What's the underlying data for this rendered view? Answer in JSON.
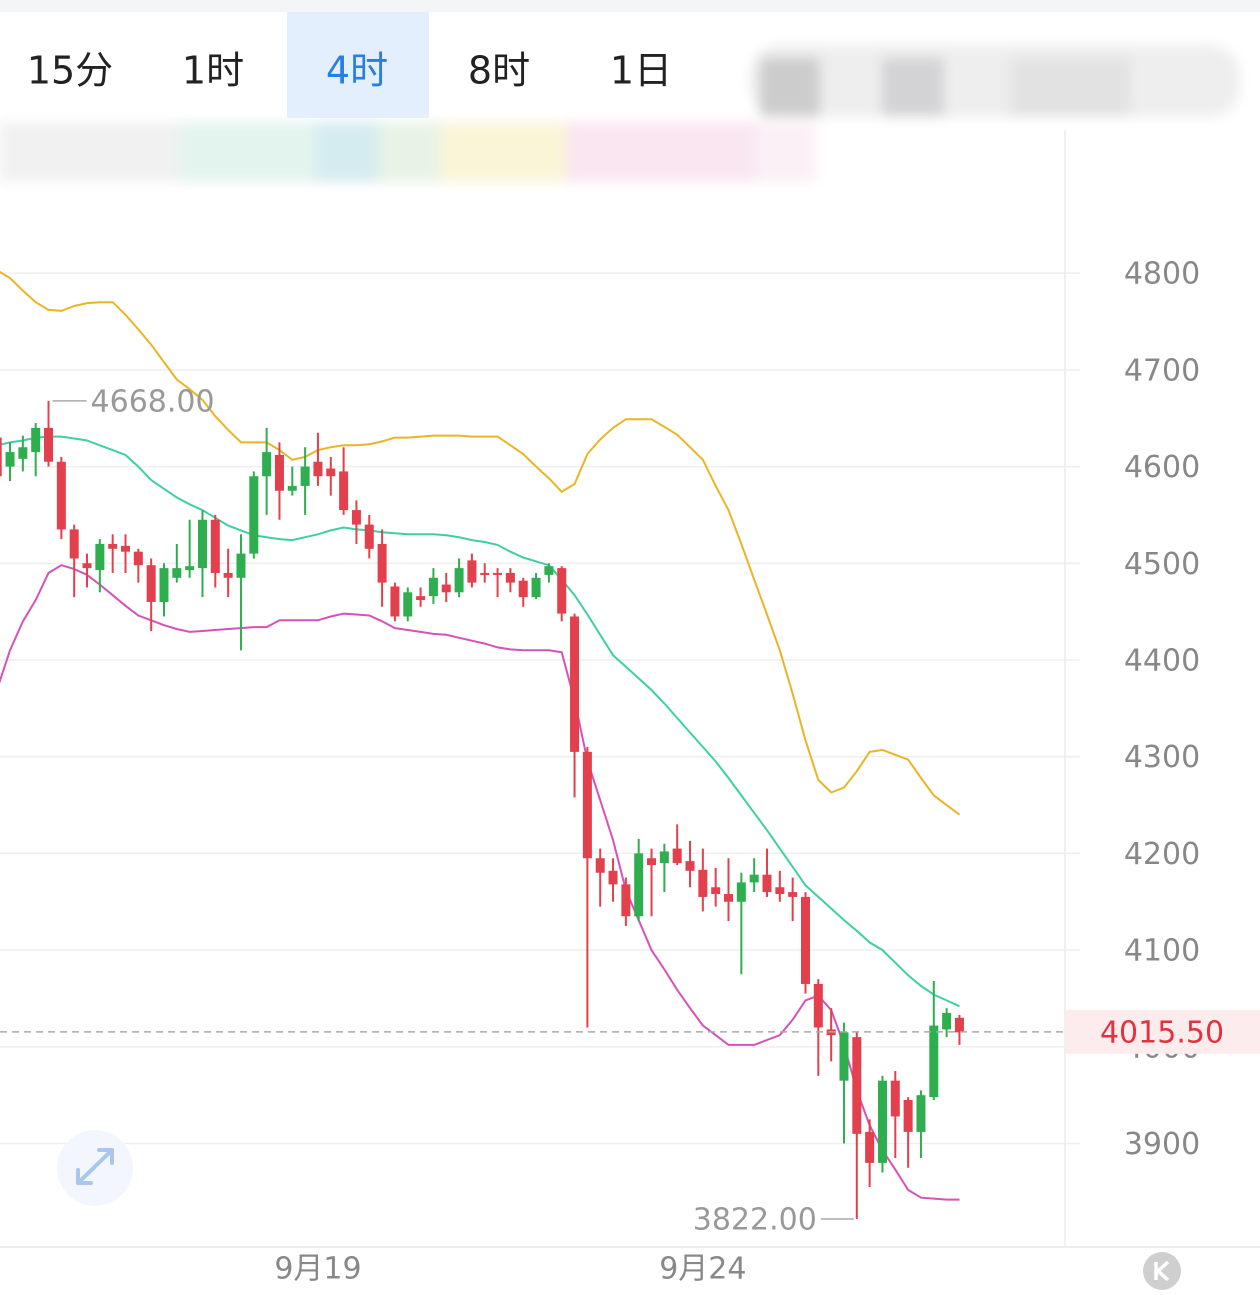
{
  "tabs": {
    "items": [
      "15分",
      "1时",
      "4时",
      "8时",
      "1日"
    ],
    "selected": "4时"
  },
  "chart_data": {
    "type": "candlestick",
    "categories": [
      null,
      null,
      null,
      null,
      null,
      null,
      null,
      null,
      null,
      null,
      null,
      null,
      null,
      null,
      null,
      null,
      null,
      null,
      null,
      null,
      null,
      null,
      null,
      null,
      null,
      "9月19",
      null,
      null,
      null,
      null,
      null,
      null,
      null,
      null,
      null,
      null,
      null,
      null,
      null,
      null,
      null,
      null,
      null,
      null,
      null,
      null,
      null,
      null,
      null,
      null,
      null,
      null,
      null,
      null,
      null,
      "9月24",
      null,
      null,
      null,
      null,
      null,
      null,
      null,
      null,
      null,
      null,
      null,
      null,
      null,
      null,
      null,
      null,
      null,
      null,
      null,
      null
    ],
    "open": [
      4630,
      4600,
      4608,
      4615,
      4640,
      4605,
      4535,
      4500,
      4493,
      4520,
      4518,
      4512,
      4498,
      4460,
      4485,
      4493,
      4495,
      4545,
      4490,
      4485,
      4510,
      4590,
      4612,
      4575,
      4580,
      4605,
      4598,
      4595,
      4555,
      4540,
      4520,
      4476,
      4445,
      4466,
      4466,
      4478,
      4470,
      4503,
      4490,
      4490,
      4490,
      4482,
      4465,
      4488,
      4495,
      4445,
      4305,
      4195,
      4182,
      4168,
      4135,
      4195,
      4190,
      4205,
      4192,
      4183,
      4165,
      4158,
      4150,
      4170,
      4178,
      4165,
      4160,
      4155,
      4065,
      4018,
      3965,
      4010,
      3912,
      3880,
      3965,
      3945,
      3912,
      3948,
      4018,
      4030
    ],
    "high": [
      4640,
      4625,
      4632,
      4645,
      4668,
      4610,
      4540,
      4510,
      4525,
      4530,
      4530,
      4515,
      4505,
      4500,
      4520,
      4545,
      4555,
      4550,
      4515,
      4530,
      4595,
      4640,
      4625,
      4600,
      4620,
      4635,
      4610,
      4620,
      4565,
      4550,
      4535,
      4480,
      4475,
      4475,
      4495,
      4490,
      4505,
      4510,
      4500,
      4495,
      4495,
      4485,
      4490,
      4500,
      4497,
      4448,
      4310,
      4205,
      4195,
      4175,
      4215,
      4205,
      4210,
      4230,
      4213,
      4205,
      4185,
      4195,
      4180,
      4195,
      4205,
      4182,
      4175,
      4160,
      4070,
      4040,
      4025,
      4015,
      3925,
      3970,
      3975,
      3948,
      3955,
      4068,
      4040,
      4033
    ],
    "low": [
      4580,
      4585,
      4595,
      4590,
      4600,
      4525,
      4465,
      4475,
      4470,
      4490,
      4490,
      4480,
      4430,
      4445,
      4480,
      4485,
      4465,
      4475,
      4465,
      4410,
      4505,
      4550,
      4545,
      4570,
      4550,
      4580,
      4570,
      4550,
      4520,
      4505,
      4455,
      4440,
      4440,
      4455,
      4458,
      4460,
      4465,
      4475,
      4480,
      4465,
      4470,
      4455,
      4463,
      4480,
      4440,
      4258,
      4020,
      4145,
      4150,
      4125,
      4130,
      4135,
      4160,
      4188,
      4165,
      4140,
      4145,
      4130,
      4075,
      4160,
      4155,
      4150,
      4130,
      4055,
      3970,
      3985,
      3900,
      3822,
      3855,
      3870,
      3885,
      3875,
      3885,
      3945,
      4010,
      4002
    ],
    "close": [
      4590,
      4615,
      4620,
      4640,
      4605,
      4535,
      4505,
      4495,
      4520,
      4515,
      4512,
      4498,
      4460,
      4495,
      4495,
      4497,
      4545,
      4490,
      4485,
      4510,
      4590,
      4615,
      4575,
      4580,
      4600,
      4590,
      4590,
      4555,
      4540,
      4515,
      4480,
      4445,
      4470,
      4462,
      4485,
      4470,
      4495,
      4480,
      4488,
      4488,
      4480,
      4465,
      4485,
      4497,
      4448,
      4305,
      4195,
      4180,
      4168,
      4135,
      4200,
      4188,
      4202,
      4190,
      4182,
      4155,
      4158,
      4150,
      4170,
      4178,
      4160,
      4158,
      4155,
      4065,
      4020,
      4012,
      4015,
      3910,
      3880,
      3965,
      3928,
      3912,
      3950,
      4022,
      4035,
      4015
    ],
    "up_color": "#2fae50",
    "down_color": "#e2404c",
    "bands": [
      {
        "color": "#e8b624",
        "values": [
          4803,
          4795,
          4782,
          4770,
          4762,
          4761,
          4766,
          4769,
          4770,
          4770,
          4757,
          4742,
          4726,
          4708,
          4690,
          4680,
          4669,
          4652,
          4638,
          4625,
          4625,
          4625,
          4617,
          4607,
          4610,
          4617,
          4620,
          4622,
          4622,
          4623,
          4626,
          4630,
          4630,
          4631,
          4632,
          4632,
          4632,
          4631,
          4631,
          4631,
          4622,
          4613,
          4600,
          4588,
          4574,
          4582,
          4613,
          4628,
          4640,
          4649,
          4649,
          4649,
          4641,
          4633,
          4620,
          4607,
          4580,
          4555,
          4520,
          4483,
          4447,
          4410,
          4365,
          4317,
          4276,
          4263,
          4268,
          4285,
          4305,
          4307,
          4302,
          4297,
          4278,
          4260,
          4250,
          4240
        ]
      },
      {
        "color": "#3fcfa4",
        "values": [
          4622,
          4625,
          4627,
          4630,
          4631,
          4631,
          4629,
          4627,
          4622,
          4617,
          4612,
          4600,
          4586,
          4577,
          4568,
          4561,
          4555,
          4547,
          4539,
          4534,
          4529,
          4527,
          4525,
          4524,
          4527,
          4530,
          4534,
          4537,
          4535,
          4534,
          4532,
          4531,
          4530,
          4530,
          4530,
          4529,
          4527,
          4524,
          4522,
          4519,
          4512,
          4506,
          4502,
          4498,
          4483,
          4467,
          4447,
          4426,
          4405,
          4393,
          4381,
          4369,
          4355,
          4340,
          4325,
          4310,
          4295,
          4278,
          4260,
          4242,
          4224,
          4205,
          4186,
          4167,
          4155,
          4143,
          4131,
          4120,
          4108,
          4100,
          4087,
          4074,
          4063,
          4054,
          4048,
          4042
        ]
      },
      {
        "color": "#d651b8",
        "values": [
          4370,
          4410,
          4440,
          4462,
          4490,
          4498,
          4494,
          4488,
          4478,
          4467,
          4456,
          4446,
          4441,
          4436,
          4432,
          4429,
          4430,
          4431,
          4432,
          4433,
          4434,
          4434,
          4441,
          4441,
          4441,
          4441,
          4445,
          4448,
          4447,
          4446,
          4440,
          4433,
          4431,
          4429,
          4427,
          4426,
          4423,
          4420,
          4417,
          4413,
          4411,
          4410,
          4410,
          4410,
          4408,
          4358,
          4296,
          4255,
          4214,
          4162,
          4131,
          4100,
          4080,
          4059,
          4040,
          4022,
          4012,
          4002,
          4002,
          4002,
          4007,
          4012,
          4028,
          4048,
          4053,
          4038,
          4002,
          3955,
          3919,
          3893,
          3873,
          3852,
          3844,
          3843,
          3842,
          3842
        ]
      }
    ],
    "ylim": [
      3793,
      4886
    ],
    "yticks": [
      3900,
      4000,
      4100,
      4200,
      4300,
      4400,
      4500,
      4600,
      4700,
      4800
    ],
    "grid": true,
    "max_label": {
      "value": 4668,
      "label": "4668.00"
    },
    "min_label": {
      "value": 3822,
      "label": "3822.00"
    },
    "last_price": {
      "value": 4015.5,
      "label": "4015.50"
    }
  }
}
